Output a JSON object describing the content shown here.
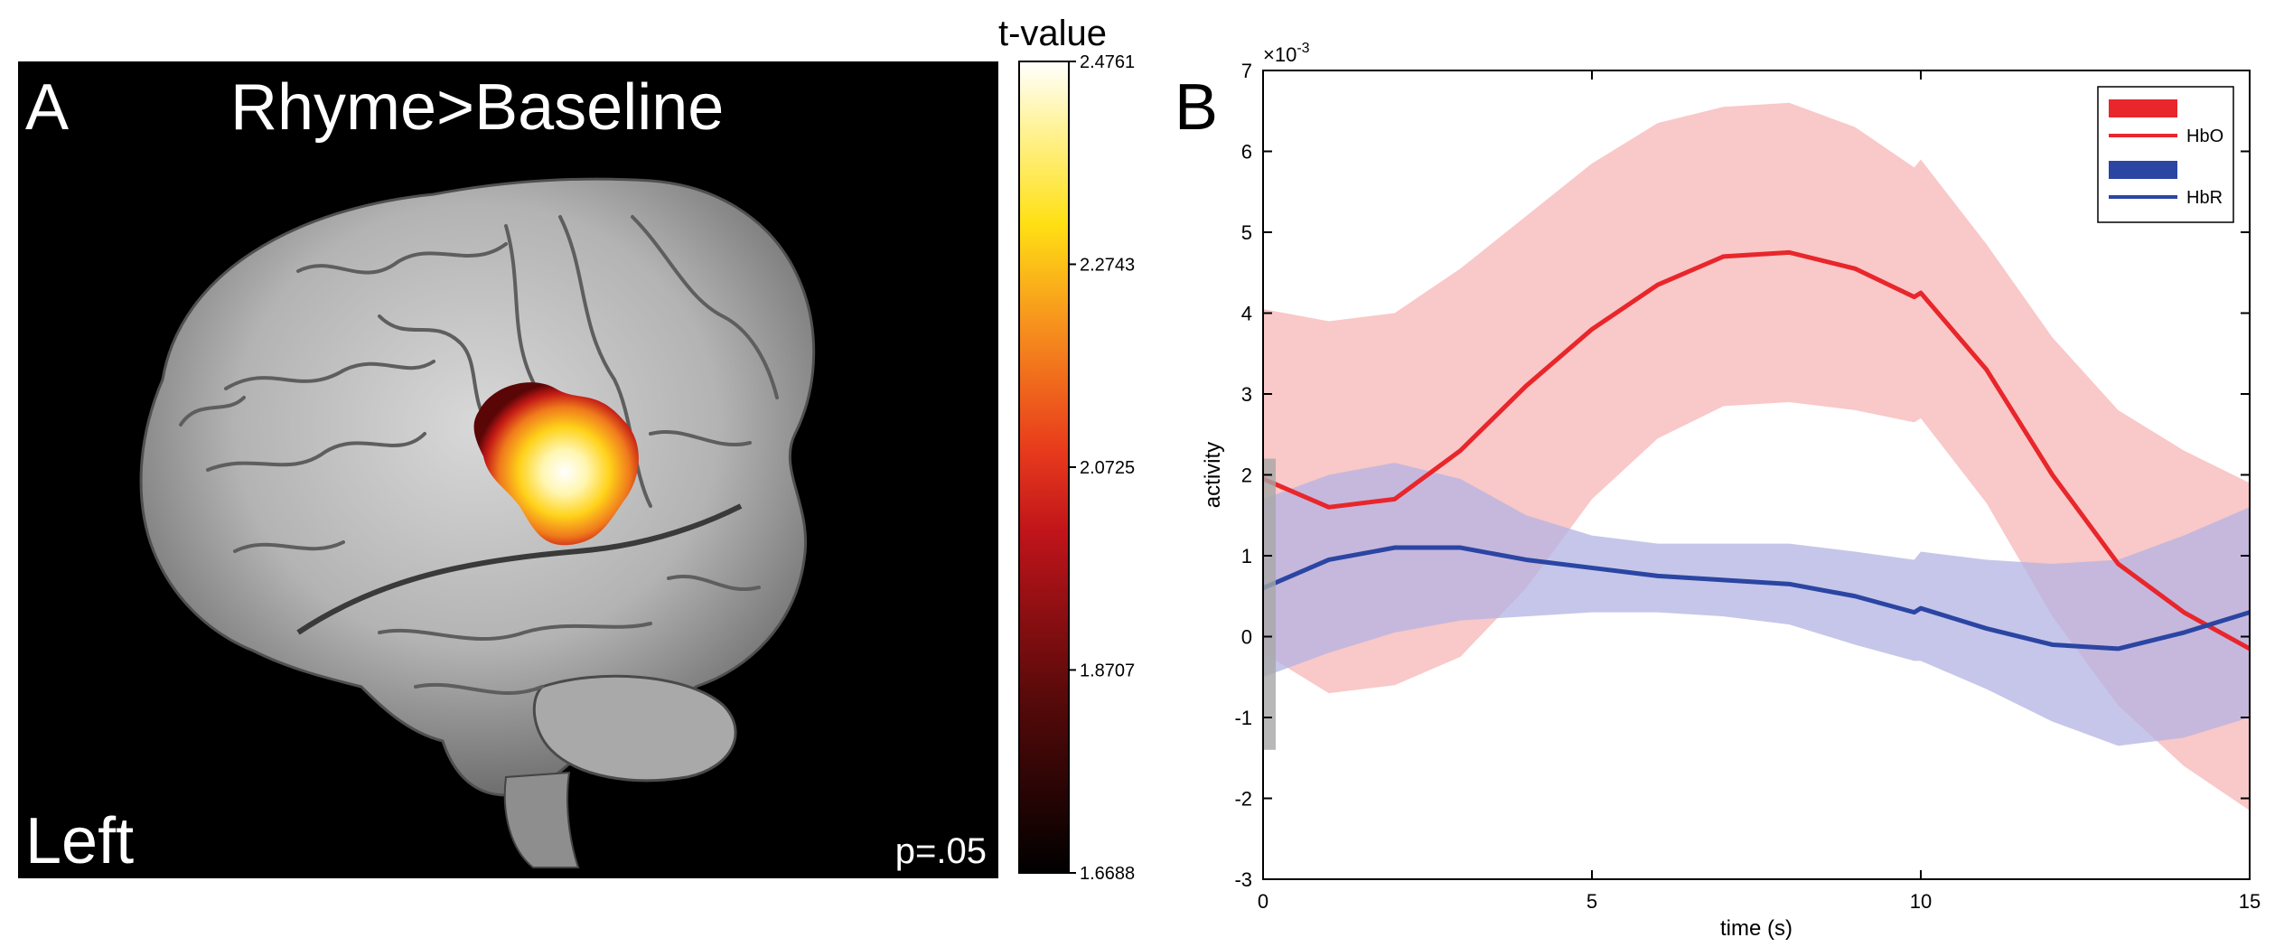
{
  "panel_a": {
    "letter": "A",
    "title": "Rhyme>Baseline",
    "side_label": "Left",
    "p_label": "p=.05",
    "colorbar": {
      "title": "t-value",
      "ticks": [
        "2.4761",
        "2.2743",
        "2.0725",
        "1.8707",
        "1.6688"
      ],
      "min": 1.6688,
      "max": 2.4761
    }
  },
  "panel_b": {
    "letter": "B"
  },
  "chart_data": {
    "type": "line",
    "xlabel": "time (s)",
    "ylabel": "activity",
    "y_exponent_label": "×10",
    "y_exponent_power": "-3",
    "xlim": [
      0,
      15
    ],
    "ylim": [
      -3,
      7
    ],
    "xticks": [
      0,
      5,
      10,
      15
    ],
    "yticks": [
      -3,
      -2,
      -1,
      0,
      1,
      2,
      3,
      4,
      5,
      6,
      7
    ],
    "legend_position": "top-right",
    "stimulus_bar": {
      "x": 0,
      "y_range": [
        -1.4,
        2.2
      ]
    },
    "colors": {
      "hbo": "#e8262b",
      "hbo_band": "#f9c8c8",
      "hbr": "#2b45a3",
      "hbr_band": "#b3b3e3"
    },
    "series": [
      {
        "name": "HbO",
        "x": [
          0,
          1,
          2,
          3,
          4,
          5,
          6,
          7,
          8,
          9,
          9.9,
          10,
          11,
          12,
          13,
          14,
          15
        ],
        "mean": [
          1.95,
          1.6,
          1.7,
          2.3,
          3.1,
          3.8,
          4.35,
          4.7,
          4.75,
          4.55,
          4.2,
          4.25,
          3.3,
          2.0,
          0.9,
          0.3,
          -0.15
        ],
        "upper": [
          4.05,
          3.9,
          4.0,
          4.55,
          5.2,
          5.85,
          6.35,
          6.55,
          6.6,
          6.3,
          5.8,
          5.9,
          4.85,
          3.7,
          2.8,
          2.3,
          1.9
        ],
        "lower": [
          -0.2,
          -0.7,
          -0.6,
          -0.25,
          0.6,
          1.7,
          2.45,
          2.85,
          2.9,
          2.8,
          2.65,
          2.7,
          1.65,
          0.25,
          -0.85,
          -1.6,
          -2.15
        ]
      },
      {
        "name": "HbR",
        "x": [
          0,
          1,
          2,
          3,
          4,
          5,
          6,
          7,
          8,
          9,
          9.9,
          10,
          11,
          12,
          13,
          14,
          15
        ],
        "mean": [
          0.6,
          0.95,
          1.1,
          1.1,
          0.95,
          0.85,
          0.75,
          0.7,
          0.65,
          0.5,
          0.3,
          0.35,
          0.1,
          -0.1,
          -0.15,
          0.05,
          0.3
        ],
        "upper": [
          1.7,
          2.0,
          2.15,
          1.95,
          1.5,
          1.25,
          1.15,
          1.15,
          1.15,
          1.05,
          0.95,
          1.05,
          0.95,
          0.9,
          0.95,
          1.25,
          1.6
        ],
        "lower": [
          -0.5,
          -0.2,
          0.05,
          0.2,
          0.25,
          0.3,
          0.3,
          0.25,
          0.15,
          -0.1,
          -0.3,
          -0.3,
          -0.65,
          -1.05,
          -1.35,
          -1.25,
          -1.0
        ]
      }
    ]
  }
}
